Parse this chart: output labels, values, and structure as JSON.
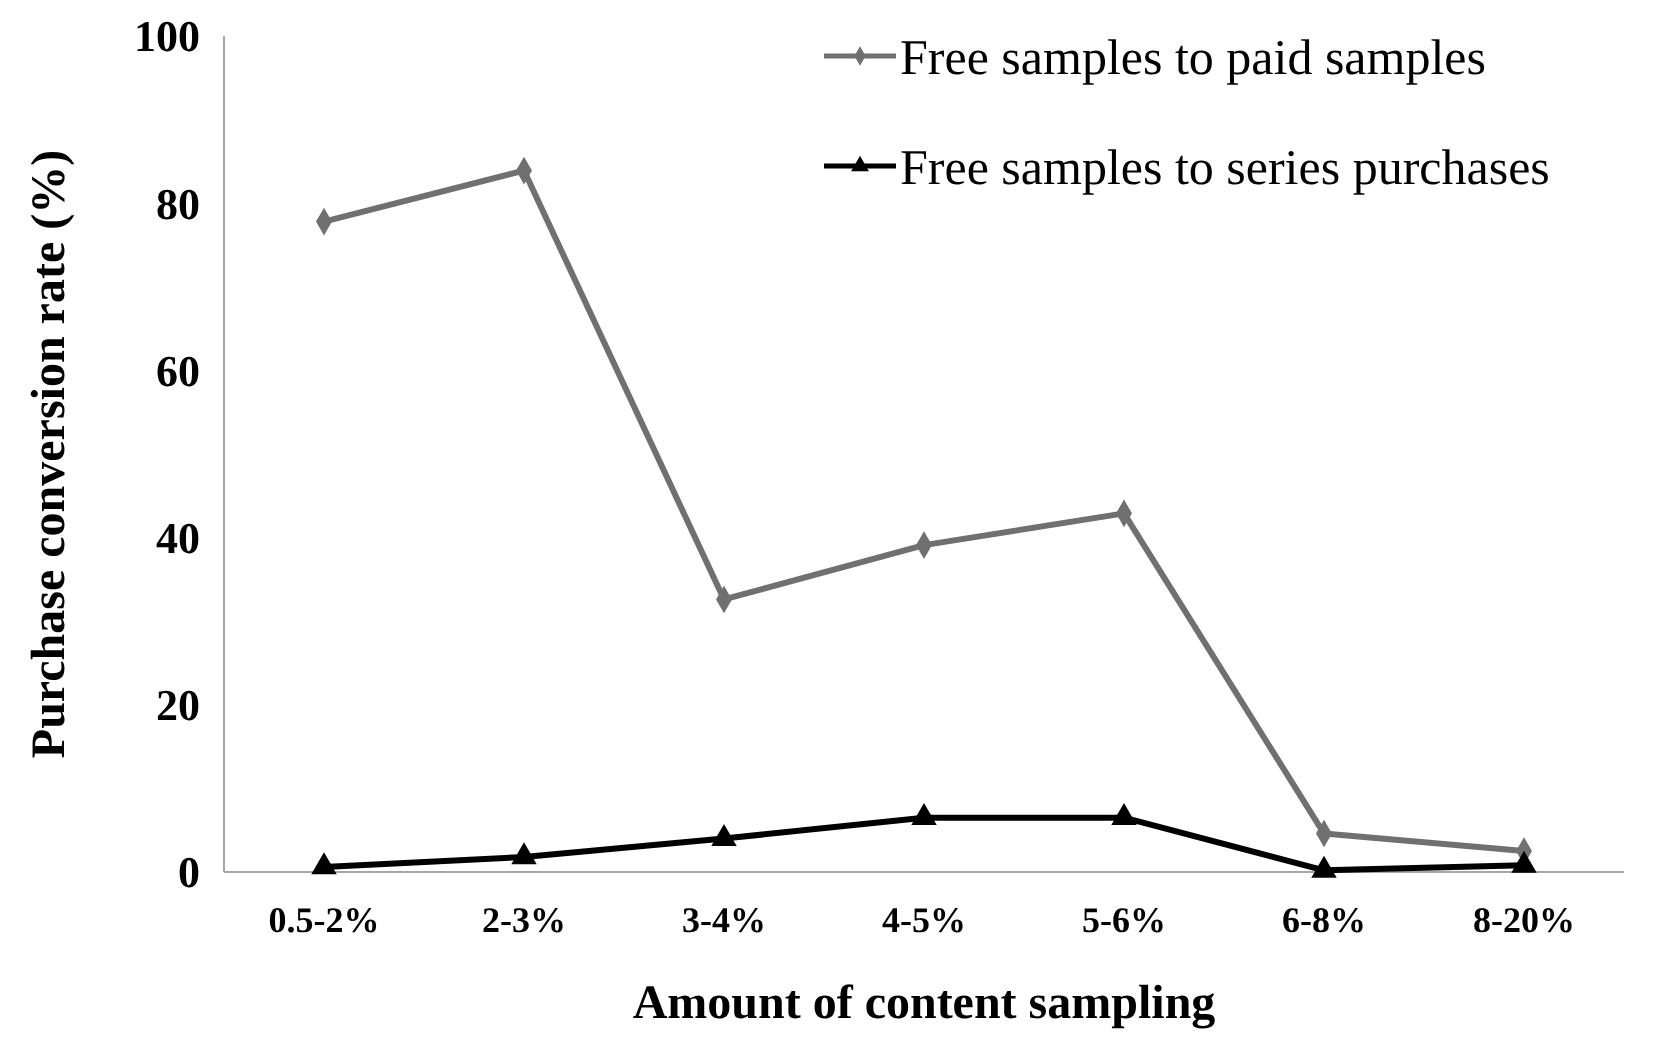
{
  "chart_data": {
    "type": "line",
    "xlabel": "Amount of content sampling",
    "ylabel": "Purchase conversion rate (%)",
    "categories": [
      "0.5-2%",
      "2-3%",
      "3-4%",
      "4-5%",
      "5-6%",
      "6-8%",
      "8-20%"
    ],
    "series": [
      {
        "name": "Free samples to paid samples",
        "color": "#707070",
        "marker": "diamond",
        "values": [
          77.8,
          83.9,
          32.6,
          39.1,
          42.9,
          4.6,
          2.5
        ]
      },
      {
        "name": "Free samples to series purchases",
        "color": "#000000",
        "marker": "triangle",
        "values": [
          0.6,
          1.8,
          4.0,
          6.5,
          6.5,
          0.2,
          0.8
        ]
      }
    ],
    "ylim": [
      0,
      100
    ],
    "yticks": [
      0,
      20,
      40,
      60,
      80,
      100
    ],
    "grid": false,
    "legend": "top right"
  }
}
